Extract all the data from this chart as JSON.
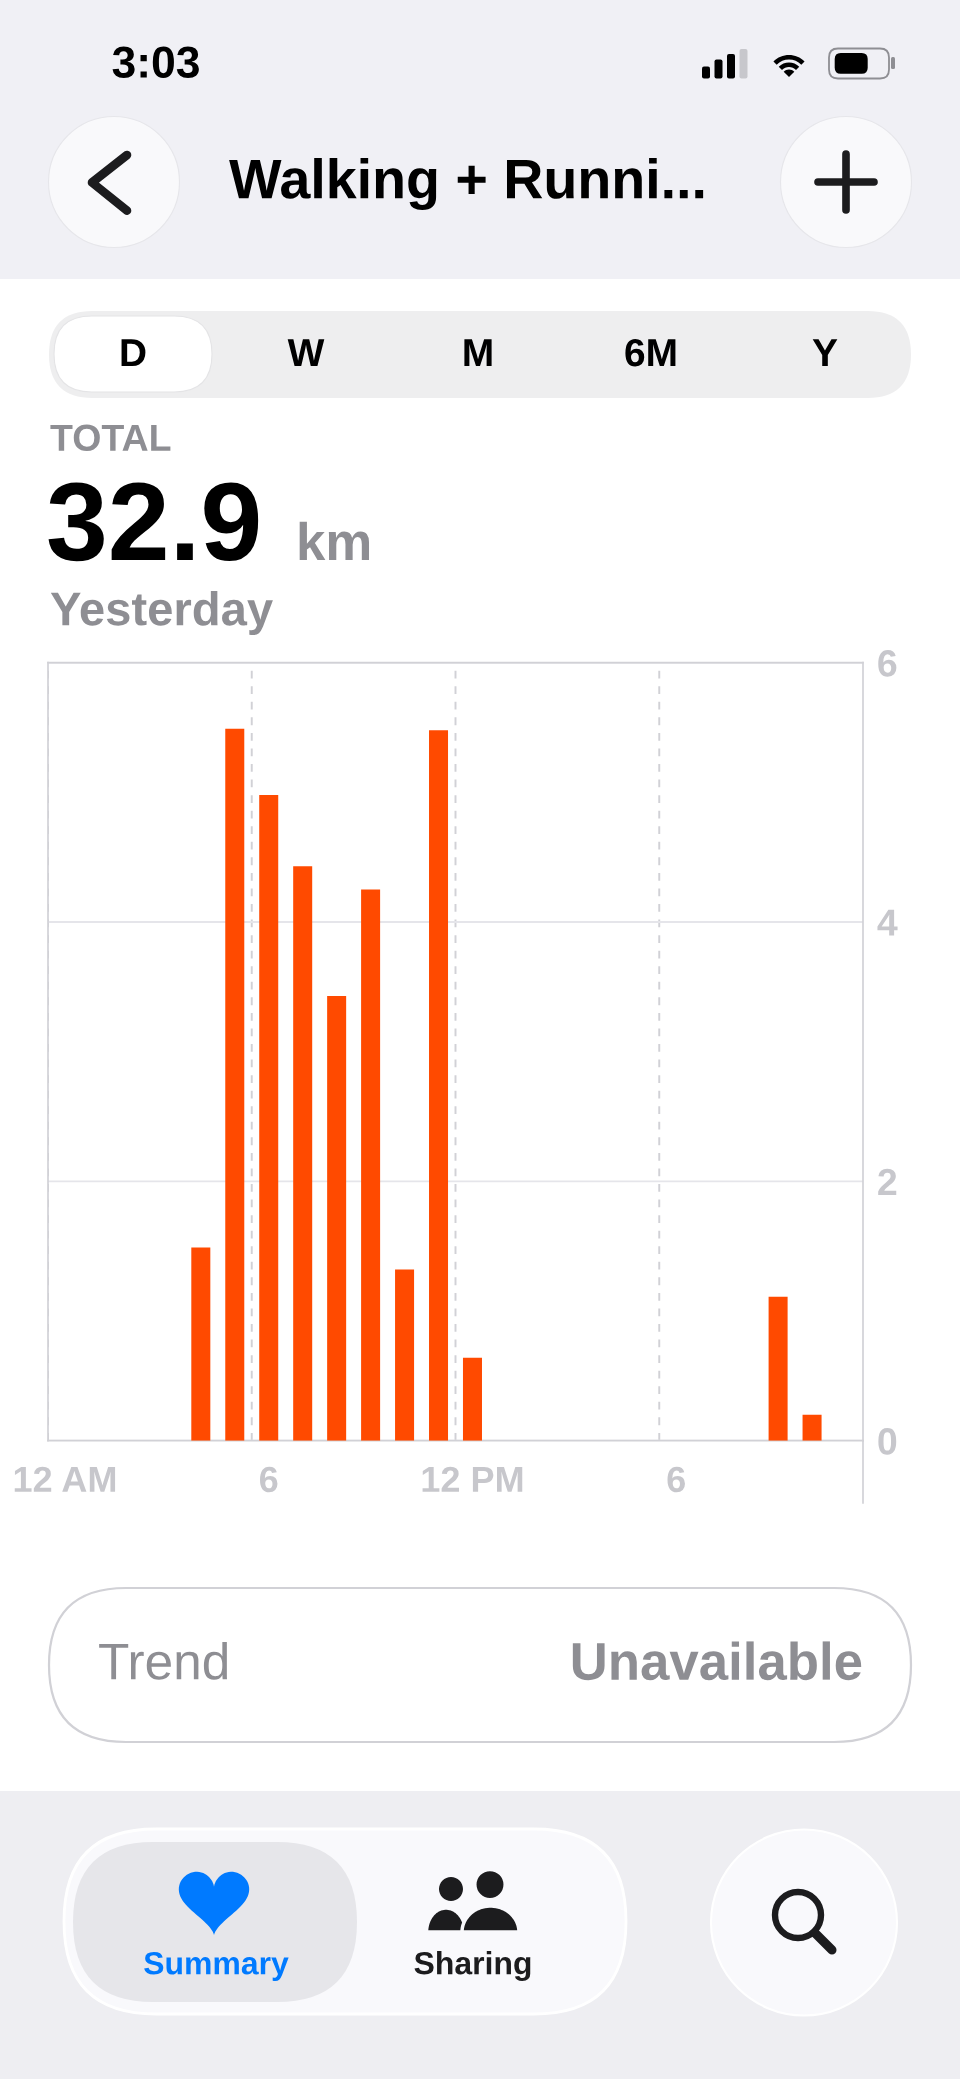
{
  "chart_data": {
    "type": "bar",
    "title": "Walking + Runni...",
    "annotations": [
      "3:03",
      "D",
      "W",
      "M",
      "6M",
      "Y",
      "TOTAL",
      "32.9",
      "km",
      "Yesterday",
      "Trend",
      "Unavailable",
      "Summary",
      "Sharing"
    ],
    "categories": [
      "12 AM",
      null,
      null,
      null,
      null,
      null,
      "6",
      null,
      null,
      null,
      null,
      null,
      "12 PM",
      null,
      null,
      null,
      null,
      null,
      "6",
      null,
      null,
      null,
      null,
      null
    ],
    "values": [
      null,
      null,
      null,
      null,
      1.49,
      5.49,
      4.98,
      4.43,
      3.43,
      4.25,
      1.32,
      5.48,
      0.64,
      null,
      null,
      null,
      null,
      null,
      null,
      null,
      null,
      1.11,
      0.2,
      null
    ],
    "color": "#ff4a00",
    "ylim": [
      0,
      6
    ],
    "yticks": [
      0,
      2,
      4,
      6
    ],
    "grid": true
  }
}
